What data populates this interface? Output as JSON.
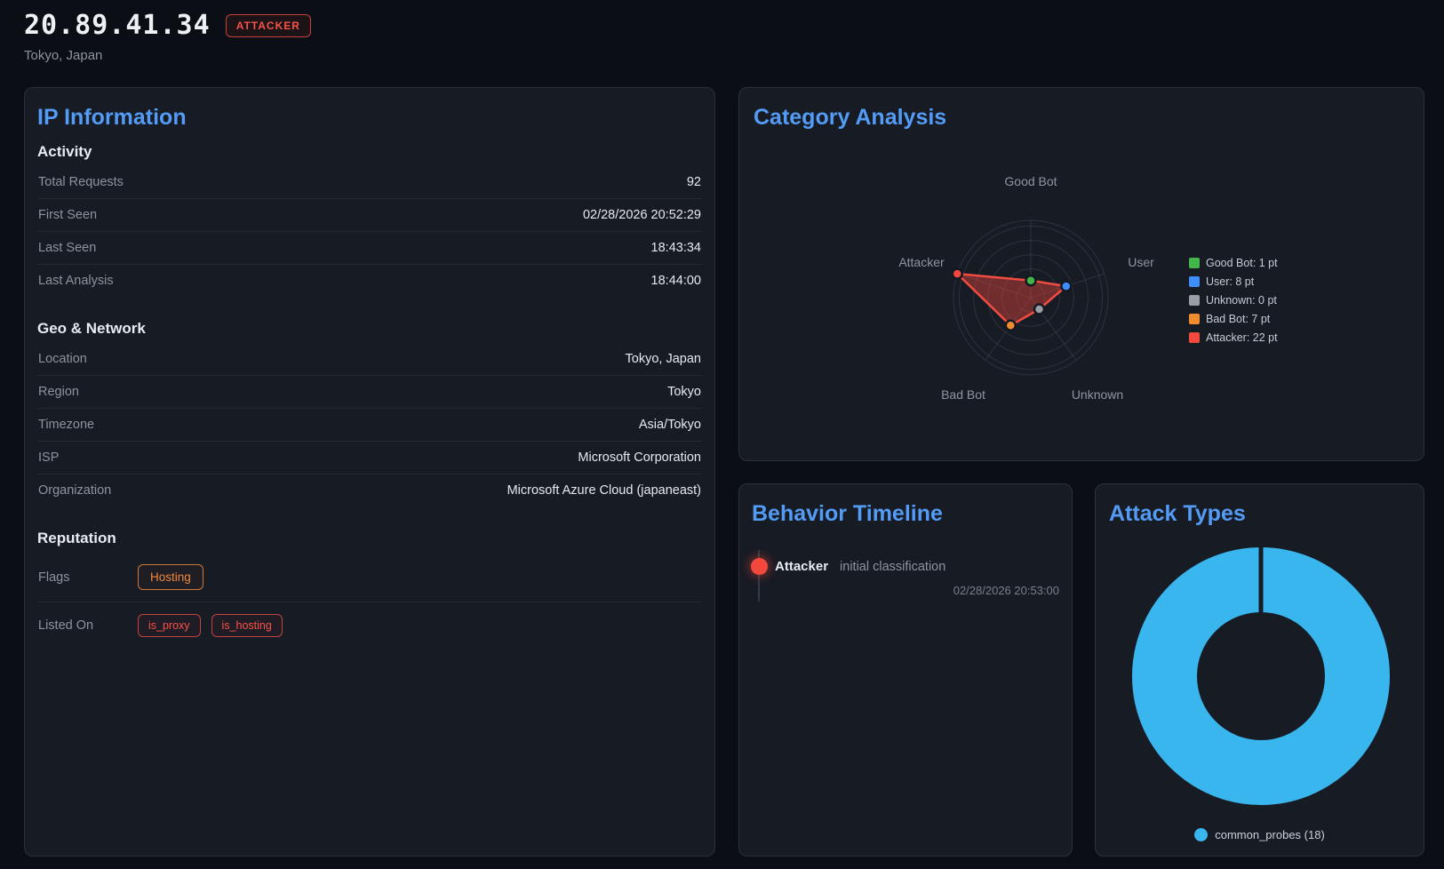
{
  "header": {
    "ip": "20.89.41.34",
    "badge": "ATTACKER",
    "subtitle": "Tokyo, Japan"
  },
  "panels": {
    "ip_info": {
      "title": "IP Information",
      "activity": {
        "heading": "Activity",
        "rows": [
          {
            "label": "Total Requests",
            "value": "92"
          },
          {
            "label": "First Seen",
            "value": "02/28/2026 20:52:29"
          },
          {
            "label": "Last Seen",
            "value": "18:43:34"
          },
          {
            "label": "Last Analysis",
            "value": "18:44:00"
          }
        ]
      },
      "geo": {
        "heading": "Geo & Network",
        "rows": [
          {
            "label": "Location",
            "value": "Tokyo, Japan"
          },
          {
            "label": "Region",
            "value": "Tokyo"
          },
          {
            "label": "Timezone",
            "value": "Asia/Tokyo"
          },
          {
            "label": "ISP",
            "value": "Microsoft Corporation"
          },
          {
            "label": "Organization",
            "value": "Microsoft Azure Cloud (japaneast)"
          }
        ]
      },
      "reputation": {
        "heading": "Reputation",
        "flags_label": "Flags",
        "flags": [
          "Hosting"
        ],
        "listed_label": "Listed On",
        "listed": [
          "is_proxy",
          "is_hosting"
        ]
      }
    },
    "category_analysis": {
      "title": "Category Analysis"
    },
    "behavior_timeline": {
      "title": "Behavior Timeline",
      "events": [
        {
          "category": "Attacker",
          "description": "initial classification",
          "timestamp": "02/28/2026 20:53:00"
        }
      ]
    },
    "attack_types": {
      "title": "Attack Types"
    }
  },
  "chart_data": [
    {
      "type": "radar",
      "title": "Category Analysis",
      "categories": [
        "Good Bot",
        "User",
        "Unknown",
        "Bad Bot",
        "Attacker"
      ],
      "values": [
        1,
        8,
        0,
        7,
        22
      ],
      "unit": "pt",
      "legend": [
        "Good Bot: 1 pt",
        "User: 8 pt",
        "Unknown: 0 pt",
        "Bad Bot: 7 pt",
        "Attacker: 22 pt"
      ],
      "point_colors": [
        "#43b649",
        "#3f8efc",
        "#98a0a6",
        "#f08c2e",
        "#f4483c"
      ],
      "series_color": "#f14c42",
      "fill_color": "rgba(224,66,58,0.45)",
      "scale": {
        "min": -5,
        "max": 22,
        "grid": true
      },
      "legend_position": "right"
    },
    {
      "type": "pie",
      "title": "Attack Types",
      "categories": [
        "common_probes"
      ],
      "values": [
        18
      ],
      "colors": [
        "#3ab6ee"
      ],
      "legend": [
        "common_probes (18)"
      ],
      "cutout": "50%",
      "legend_position": "bottom"
    }
  ]
}
